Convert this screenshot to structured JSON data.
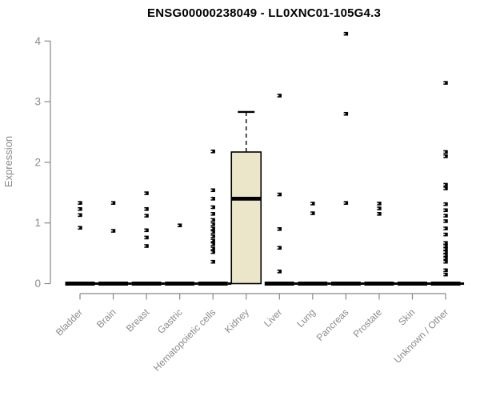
{
  "title": "ENSG00000238049 - LL0XNC01-105G4.3",
  "chart_data": {
    "type": "boxplot",
    "title": "ENSG00000238049 - LL0XNC01-105G4.3",
    "xlabel": "",
    "ylabel": "Expression",
    "ylim": [
      0,
      4
    ],
    "yticks": [
      "0",
      "1",
      "2",
      "3",
      "4"
    ],
    "grid": false,
    "legend": "none",
    "categories": [
      "Bladder",
      "Brain",
      "Breast",
      "Gastric",
      "Hematopoietic cells",
      "Kidney",
      "Liver",
      "Lung",
      "Pancreas",
      "Prostate",
      "Skin",
      "Unknown / Other"
    ],
    "boxes": [
      {
        "category": "Bladder",
        "q1": 0,
        "median": 0,
        "q3": 0,
        "whisker_low": 0,
        "whisker_high": 0,
        "outliers": [
          1.33,
          1.23,
          1.13,
          0.92
        ]
      },
      {
        "category": "Brain",
        "q1": 0,
        "median": 0,
        "q3": 0,
        "whisker_low": 0,
        "whisker_high": 0,
        "outliers": [
          1.33,
          0.87
        ]
      },
      {
        "category": "Breast",
        "q1": 0,
        "median": 0,
        "q3": 0,
        "whisker_low": 0,
        "whisker_high": 0,
        "outliers": [
          1.49,
          1.23,
          1.12,
          0.88,
          0.76,
          0.62
        ]
      },
      {
        "category": "Gastric",
        "q1": 0,
        "median": 0,
        "q3": 0,
        "whisker_low": 0,
        "whisker_high": 0,
        "outliers": [
          0.96
        ]
      },
      {
        "category": "Hematopoietic cells",
        "q1": 0,
        "median": 0,
        "q3": 0,
        "whisker_low": 0,
        "whisker_high": 0,
        "outliers": [
          2.18,
          1.54,
          1.4,
          1.26,
          1.15,
          1.05,
          0.98,
          0.91,
          0.85,
          0.78,
          0.71,
          0.65,
          0.58,
          0.52,
          0.36
        ]
      },
      {
        "category": "Kidney",
        "q1": 0,
        "median": 1.4,
        "q3": 2.17,
        "whisker_low": 0,
        "whisker_high": 2.83,
        "outliers": []
      },
      {
        "category": "Liver",
        "q1": 0,
        "median": 0,
        "q3": 0,
        "whisker_low": 0,
        "whisker_high": 0,
        "outliers": [
          3.1,
          1.47,
          0.9,
          0.59,
          0.2
        ]
      },
      {
        "category": "Lung",
        "q1": 0,
        "median": 0,
        "q3": 0,
        "whisker_low": 0,
        "whisker_high": 0,
        "outliers": [
          1.32,
          1.16
        ]
      },
      {
        "category": "Pancreas",
        "q1": 0,
        "median": 0,
        "q3": 0,
        "whisker_low": 0,
        "whisker_high": 0,
        "outliers": [
          4.12,
          2.8,
          1.33
        ]
      },
      {
        "category": "Prostate",
        "q1": 0,
        "median": 0,
        "q3": 0,
        "whisker_low": 0,
        "whisker_high": 0,
        "outliers": [
          1.32,
          1.24,
          1.15
        ]
      },
      {
        "category": "Skin",
        "q1": 0,
        "median": 0,
        "q3": 0,
        "whisker_low": 0,
        "whisker_high": 0,
        "outliers": []
      },
      {
        "category": "Unknown / Other",
        "q1": 0,
        "median": 0,
        "q3": 0,
        "whisker_low": 0,
        "whisker_high": 0,
        "outliers": [
          3.31,
          2.17,
          2.1,
          1.63,
          1.57,
          1.31,
          1.21,
          1.12,
          1.03,
          0.91,
          0.81,
          0.67,
          0.62,
          0.57,
          0.52,
          0.47,
          0.42,
          0.36,
          0.22,
          0.15
        ]
      }
    ],
    "colors": {
      "box_fill": "#ebe6c9",
      "box_border": "#000000",
      "median": "#000000",
      "point": "#000000",
      "axis": "#888888",
      "tick_text": "#8a8a8a",
      "title_text": "#000000",
      "background": "#ffffff"
    }
  }
}
